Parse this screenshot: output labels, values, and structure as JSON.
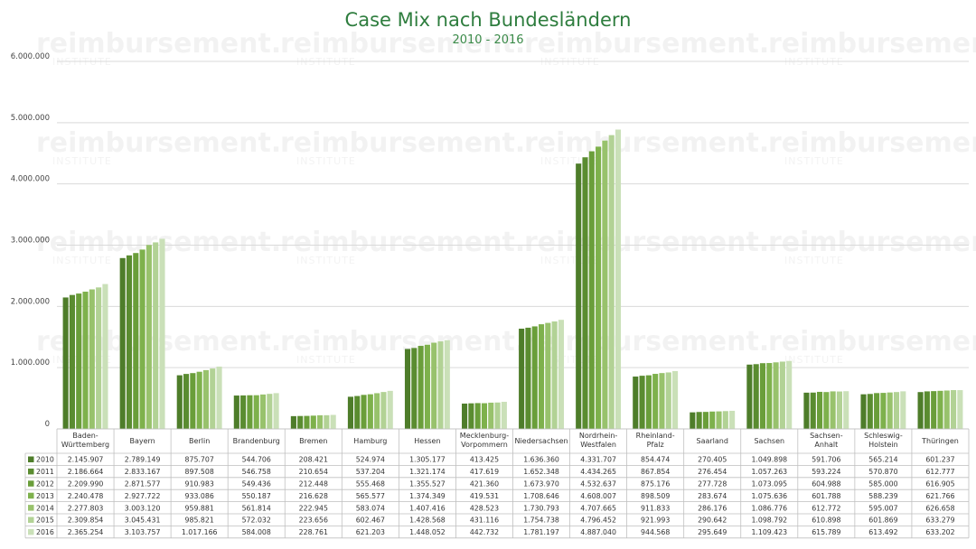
{
  "chart_data": {
    "type": "bar",
    "title": "Case Mix nach Bundesländern",
    "subtitle": "2010 - 2016",
    "categories": [
      "Baden-Württemberg",
      "Bayern",
      "Berlin",
      "Brandenburg",
      "Bremen",
      "Hamburg",
      "Hessen",
      "Mecklenburg-Vorpommern",
      "Niedersachsen",
      "Nordrhein-Westfalen",
      "Rheinland-Pfalz",
      "Saarland",
      "Sachsen",
      "Sachsen-Anhalt",
      "Schleswig-Holstein",
      "Thüringen"
    ],
    "category_lines": [
      [
        "Baden-",
        "Württemberg"
      ],
      [
        "Bayern"
      ],
      [
        "Berlin"
      ],
      [
        "Brandenburg"
      ],
      [
        "Bremen"
      ],
      [
        "Hamburg"
      ],
      [
        "Hessen"
      ],
      [
        "Mecklenburg-",
        "Vorpommern"
      ],
      [
        "Niedersachsen"
      ],
      [
        "Nordrhein-",
        "Westfalen"
      ],
      [
        "Rheinland-",
        "Pfalz"
      ],
      [
        "Saarland"
      ],
      [
        "Sachsen"
      ],
      [
        "Sachsen-",
        "Anhalt"
      ],
      [
        "Schleswig-",
        "Holstein"
      ],
      [
        "Thüringen"
      ]
    ],
    "series": [
      {
        "name": "2010",
        "color": "#4e7d2a",
        "values": [
          2145907,
          2789149,
          875707,
          544706,
          208421,
          524974,
          1305177,
          413425,
          1636360,
          4331707,
          854474,
          270405,
          1049898,
          591706,
          565214,
          601237
        ]
      },
      {
        "name": "2011",
        "color": "#5a8c30",
        "values": [
          2186664,
          2833167,
          897508,
          546758,
          210654,
          537204,
          1321174,
          417619,
          1652348,
          4434265,
          867854,
          276454,
          1057263,
          593224,
          570870,
          612777
        ]
      },
      {
        "name": "2012",
        "color": "#6a9e3a",
        "values": [
          2209990,
          2871577,
          910983,
          549436,
          212448,
          555468,
          1355527,
          421360,
          1673970,
          4532637,
          875176,
          277728,
          1073095,
          604988,
          585000,
          616905
        ]
      },
      {
        "name": "2013",
        "color": "#7eb14c",
        "values": [
          2240478,
          2927722,
          933086,
          550187,
          216628,
          565577,
          1374349,
          419531,
          1708646,
          4608007,
          898509,
          283674,
          1075636,
          601788,
          588239,
          621766
        ]
      },
      {
        "name": "2014",
        "color": "#98c26c",
        "values": [
          2277803,
          3003120,
          959881,
          561814,
          222945,
          583074,
          1407416,
          428523,
          1730793,
          4707665,
          911833,
          286176,
          1086776,
          612772,
          595007,
          626658
        ]
      },
      {
        "name": "2015",
        "color": "#b2d295",
        "values": [
          2309854,
          3045431,
          985821,
          572032,
          223656,
          602467,
          1428568,
          431116,
          1754738,
          4796452,
          921993,
          290642,
          1098792,
          610898,
          601869,
          633279
        ]
      },
      {
        "name": "2016",
        "color": "#cae0b8",
        "values": [
          2365254,
          3103757,
          1017166,
          584008,
          228761,
          621203,
          1448052,
          442732,
          1781197,
          4887040,
          944568,
          295649,
          1109423,
          615789,
          613492,
          633202
        ]
      }
    ],
    "series_labels": [
      "2010",
      "2011",
      "2012",
      "2013",
      "2014",
      "2015",
      "2016"
    ],
    "formatted": [
      [
        "2.145.907",
        "2.789.149",
        "875.707",
        "544.706",
        "208.421",
        "524.974",
        "1.305.177",
        "413.425",
        "1.636.360",
        "4.331.707",
        "854.474",
        "270.405",
        "1.049.898",
        "591.706",
        "565.214",
        "601.237"
      ],
      [
        "2.186.664",
        "2.833.167",
        "897.508",
        "546.758",
        "210.654",
        "537.204",
        "1.321.174",
        "417.619",
        "1.652.348",
        "4.434.265",
        "867.854",
        "276.454",
        "1.057.263",
        "593.224",
        "570.870",
        "612.777"
      ],
      [
        "2.209.990",
        "2.871.577",
        "910.983",
        "549.436",
        "212.448",
        "555.468",
        "1.355.527",
        "421.360",
        "1.673.970",
        "4.532.637",
        "875.176",
        "277.728",
        "1.073.095",
        "604.988",
        "585.000",
        "616.905"
      ],
      [
        "2.240.478",
        "2.927.722",
        "933.086",
        "550.187",
        "216.628",
        "565.577",
        "1.374.349",
        "419.531",
        "1.708.646",
        "4.608.007",
        "898.509",
        "283.674",
        "1.075.636",
        "601.788",
        "588.239",
        "621.766"
      ],
      [
        "2.277.803",
        "3.003.120",
        "959.881",
        "561.814",
        "222.945",
        "583.074",
        "1.407.416",
        "428.523",
        "1.730.793",
        "4.707.665",
        "911.833",
        "286.176",
        "1.086.776",
        "612.772",
        "595.007",
        "626.658"
      ],
      [
        "2.309.854",
        "3.045.431",
        "985.821",
        "572.032",
        "223.656",
        "602.467",
        "1.428.568",
        "431.116",
        "1.754.738",
        "4.796.452",
        "921.993",
        "290.642",
        "1.098.792",
        "610.898",
        "601.869",
        "633.279"
      ],
      [
        "2.365.254",
        "3.103.757",
        "1.017.166",
        "584.008",
        "228.761",
        "621.203",
        "1.448.052",
        "442.732",
        "1.781.197",
        "4.887.040",
        "944.568",
        "295.649",
        "1.109.423",
        "615.789",
        "613.492",
        "633.202"
      ]
    ],
    "yticks": [
      0,
      1000000,
      2000000,
      3000000,
      4000000,
      5000000,
      6000000
    ],
    "ytick_labels": [
      "0",
      "1.000.000",
      "2.000.000",
      "3.000.000",
      "4.000.000",
      "5.000.000",
      "6.000.000"
    ],
    "ylim": [
      0,
      6000000
    ],
    "grid": true,
    "legend": "data-table"
  },
  "watermark": {
    "text": "reimbursement.",
    "subtext": "INSTITUTE"
  }
}
